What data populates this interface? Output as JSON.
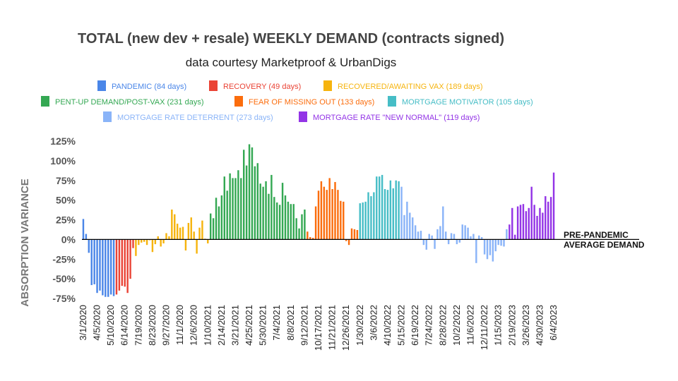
{
  "chart_data": {
    "type": "bar",
    "title": "TOTAL (new dev + resale) WEEKLY DEMAND (contracts signed)",
    "subtitle": "data courtesy Marketproof & UrbanDigs",
    "ylabel": "ABSORPTION VARIANCE",
    "ylim": [
      -75,
      125
    ],
    "yticks": [
      -75,
      -50,
      -25,
      0,
      25,
      50,
      75,
      100,
      125
    ],
    "ytick_labels": [
      "-75%",
      "-50%",
      "-25%",
      "0%",
      "25%",
      "50%",
      "75%",
      "100%",
      "125%"
    ],
    "x_tick_labels": [
      "3/1/2020",
      "4/5/2020",
      "5/10/2020",
      "6/14/2020",
      "7/19/2020",
      "8/23/2020",
      "9/27/2020",
      "11/1/2020",
      "12/6/2020",
      "1/10/2021",
      "2/14/2021",
      "3/21/2021",
      "4/25/2021",
      "5/30/2021",
      "7/4/2021",
      "8/8/2021",
      "9/12/2021",
      "10/17/2021",
      "11/21/2021",
      "12/26/2021",
      "1/30/2022",
      "3/6/2022",
      "4/10/2022",
      "5/15/2022",
      "6/19/2022",
      "7/24/2022",
      "8/28/2022",
      "10/2/2022",
      "11/6/2022",
      "12/11/2022",
      "1/15/2023",
      "2/19/2023",
      "3/26/2023",
      "4/30/2023",
      "6/4/2023"
    ],
    "grid": false,
    "annotation": [
      "PRE-PANDEMIC",
      "AVERAGE DEMAND"
    ],
    "series": [
      {
        "name": "PANDEMIC (84 days)",
        "color": "#4a86e8",
        "values": [
          26,
          7,
          -17,
          -58,
          -57,
          -68,
          -65,
          -71,
          -73,
          -73,
          -70,
          -72
        ]
      },
      {
        "name": "RECOVERY (49 days)",
        "color": "#ea4335",
        "values": [
          -70,
          -65,
          -59,
          -60,
          -68,
          -50,
          -11
        ]
      },
      {
        "name": "RECOVERED/AWAITING VAX (189 days)",
        "color": "#f6b40e",
        "values": [
          -21,
          -7,
          -4,
          -3,
          -7,
          -1,
          -16,
          -6,
          4,
          -9,
          -5,
          8,
          4,
          38,
          32,
          20,
          15,
          16,
          -14,
          21,
          28,
          10,
          -18,
          15,
          24,
          1,
          -5
        ]
      },
      {
        "name": "PENT-UP DEMAND/POST-VAX (231 days)",
        "color": "#34a853",
        "values": [
          33,
          27,
          53,
          42,
          56,
          80,
          62,
          84,
          78,
          78,
          88,
          78,
          114,
          94,
          121,
          117,
          93,
          97,
          71,
          67,
          74,
          58,
          82,
          54,
          47,
          44,
          72,
          56,
          48,
          45,
          45,
          27,
          14,
          32,
          38
        ]
      },
      {
        "name": "FEAR OF MISSING OUT (133 days)",
        "color": "#fb6d0d",
        "values": [
          10,
          3,
          2,
          42,
          62,
          74,
          67,
          63,
          78,
          64,
          73,
          63,
          49,
          48,
          -2,
          -7,
          14,
          13,
          12
        ]
      },
      {
        "name": "MORTGAGE MOTIVATOR (105 days)",
        "color": "#46bdc6",
        "values": [
          46,
          47,
          48,
          60,
          55,
          60,
          80,
          80,
          82,
          64,
          63,
          75,
          65,
          75,
          74
        ]
      },
      {
        "name": "MORTGAGE RATE DETERRENT (273 days)",
        "color": "#8ab4f8",
        "values": [
          67,
          31,
          48,
          34,
          28,
          18,
          10,
          11,
          -7,
          -13,
          7,
          5,
          -12,
          13,
          17,
          42,
          10,
          -6,
          8,
          7,
          -6,
          -4,
          19,
          18,
          15,
          4,
          7,
          -30,
          5,
          3,
          -19,
          -25,
          -20,
          -28,
          -15,
          -7,
          -8,
          -9,
          13
        ]
      },
      {
        "name": "MORTGAGE RATE \"NEW NORMAL\" (119 days)",
        "color": "#9334e6",
        "values": [
          19,
          40,
          6,
          42,
          44,
          45,
          36,
          40,
          67,
          44,
          30,
          40,
          34,
          55,
          48,
          54,
          85
        ]
      }
    ]
  }
}
